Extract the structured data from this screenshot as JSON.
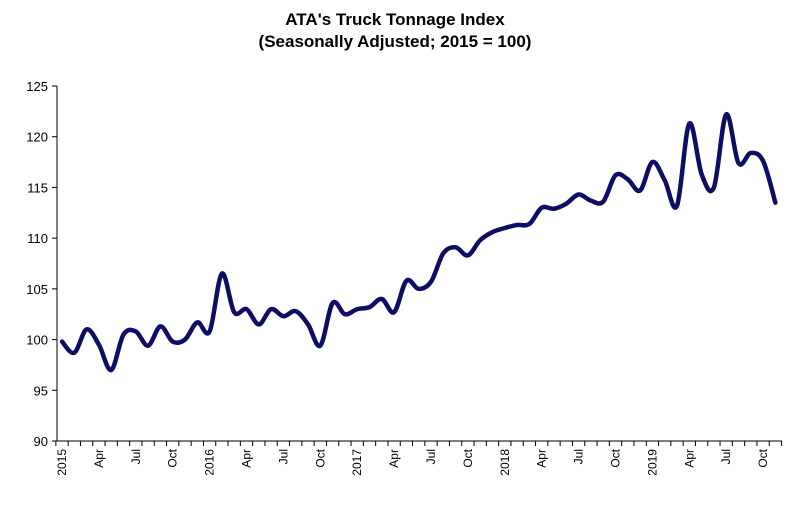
{
  "chart_data": {
    "type": "line",
    "title": "ATA's Truck Tonnage Index",
    "subtitle": "(Seasonally Adjusted; 2015 = 100)",
    "xlabel": "",
    "ylabel": "",
    "ylim": [
      90,
      125
    ],
    "yticks": [
      90,
      95,
      100,
      105,
      110,
      115,
      120,
      125
    ],
    "grid": false,
    "line_color": "#0d0d66",
    "xtick_labels": [
      "2015",
      "Apr",
      "Jul",
      "Oct",
      "2016",
      "Apr",
      "Jul",
      "Oct",
      "2017",
      "Apr",
      "Jul",
      "Oct",
      "2018",
      "Apr",
      "Jul",
      "Oct",
      "2019",
      "Apr",
      "Jul",
      "Oct"
    ],
    "x": [
      "2015-01",
      "2015-02",
      "2015-03",
      "2015-04",
      "2015-05",
      "2015-06",
      "2015-07",
      "2015-08",
      "2015-09",
      "2015-10",
      "2015-11",
      "2015-12",
      "2016-01",
      "2016-02",
      "2016-03",
      "2016-04",
      "2016-05",
      "2016-06",
      "2016-07",
      "2016-08",
      "2016-09",
      "2016-10",
      "2016-11",
      "2016-12",
      "2017-01",
      "2017-02",
      "2017-03",
      "2017-04",
      "2017-05",
      "2017-06",
      "2017-07",
      "2017-08",
      "2017-09",
      "2017-10",
      "2017-11",
      "2017-12",
      "2018-01",
      "2018-02",
      "2018-03",
      "2018-04",
      "2018-05",
      "2018-06",
      "2018-07",
      "2018-08",
      "2018-09",
      "2018-10",
      "2018-11",
      "2018-12",
      "2019-01",
      "2019-02",
      "2019-03",
      "2019-04",
      "2019-05",
      "2019-06",
      "2019-07",
      "2019-08",
      "2019-09",
      "2019-10",
      "2019-11"
    ],
    "series": [
      {
        "values": [
          99.8,
          98.7,
          101.0,
          99.5,
          97.0,
          100.5,
          100.8,
          99.4,
          101.3,
          99.8,
          100.0,
          101.7,
          100.8,
          106.5,
          102.7,
          103.0,
          101.5,
          103.0,
          102.3,
          102.8,
          101.5,
          99.4,
          103.6,
          102.5,
          103.0,
          103.2,
          104.0,
          102.7,
          105.8,
          105.0,
          105.7,
          108.5,
          109.1,
          108.3,
          109.8,
          110.6,
          111.0,
          111.3,
          111.4,
          113.0,
          112.9,
          113.4,
          114.3,
          113.7,
          113.6,
          116.2,
          115.8,
          114.7,
          117.5,
          115.7,
          113.2,
          121.3,
          116.3,
          115.0,
          122.2,
          117.4,
          118.4,
          117.6,
          113.5
        ]
      }
    ]
  }
}
